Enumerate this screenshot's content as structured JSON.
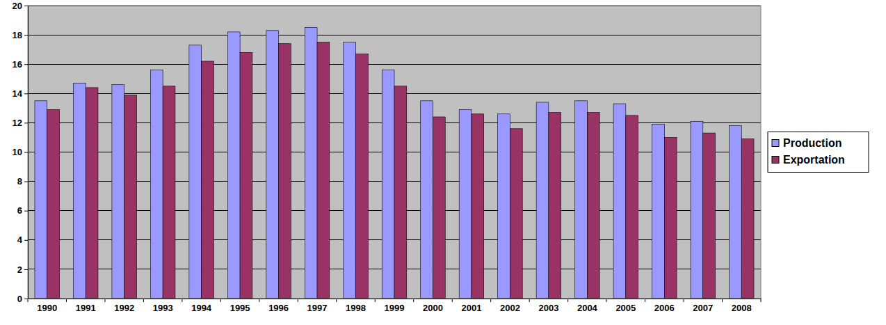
{
  "chart_data": {
    "type": "bar",
    "categories": [
      "1990",
      "1991",
      "1992",
      "1993",
      "1994",
      "1995",
      "1996",
      "1997",
      "1998",
      "1999",
      "2000",
      "2001",
      "2002",
      "2003",
      "2004",
      "2005",
      "2006",
      "2007",
      "2008"
    ],
    "series": [
      {
        "name": "Production",
        "color": "#9999ff",
        "values": [
          13.5,
          14.7,
          14.6,
          15.6,
          17.3,
          18.2,
          18.3,
          18.5,
          17.5,
          15.6,
          13.5,
          12.9,
          12.6,
          13.4,
          13.5,
          13.3,
          11.9,
          12.1,
          11.8
        ]
      },
      {
        "name": "Exportation",
        "color": "#993366",
        "values": [
          12.9,
          14.4,
          13.9,
          14.5,
          16.2,
          16.8,
          17.4,
          17.5,
          16.7,
          14.5,
          12.4,
          12.6,
          11.6,
          12.7,
          12.7,
          12.5,
          11.0,
          11.3,
          10.9
        ]
      }
    ],
    "ylim": [
      0,
      20
    ],
    "yticks": [
      0,
      2,
      4,
      6,
      8,
      10,
      12,
      14,
      16,
      18,
      20
    ],
    "grid": true,
    "legend": "right"
  }
}
